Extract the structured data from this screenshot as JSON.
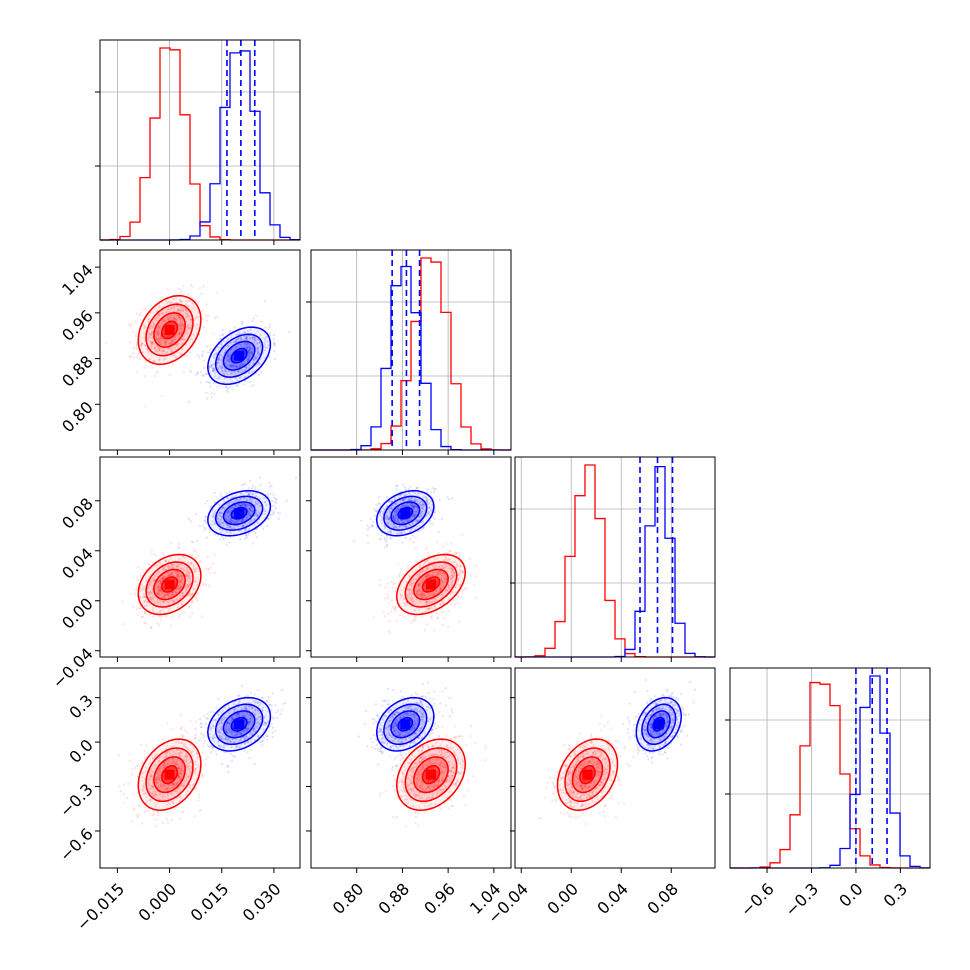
{
  "chart_data": {
    "type": "corner",
    "grid": true,
    "parameters": [
      {
        "id": "p0",
        "range": [
          -0.02,
          0.0375
        ],
        "ticks": [
          "−0.015",
          "0.000",
          "0.015",
          "0.030"
        ],
        "tick_values": [
          -0.015,
          0.0,
          0.015,
          0.03
        ]
      },
      {
        "id": "p1",
        "range": [
          0.72,
          1.07
        ],
        "ticks": [
          "0.80",
          "0.88",
          "0.96",
          "1.04"
        ],
        "tick_values": [
          0.8,
          0.88,
          0.96,
          1.04
        ]
      },
      {
        "id": "p2",
        "range": [
          -0.045,
          0.115
        ],
        "ticks": [
          "−0.04",
          "0.00",
          "0.04",
          "0.08"
        ],
        "tick_values": [
          -0.04,
          0.0,
          0.04,
          0.08
        ]
      },
      {
        "id": "p3",
        "range": [
          -0.85,
          0.5
        ],
        "ticks": [
          "−0.6",
          "−0.3",
          "0.0",
          "0.3"
        ],
        "tick_values": [
          -0.6,
          -0.3,
          0.0,
          0.3
        ]
      }
    ],
    "series": [
      {
        "color": "#ff0000",
        "mean": [
          0.0,
          0.93,
          0.013,
          -0.22
        ],
        "std": [
          0.0045,
          0.03,
          0.012,
          0.12
        ],
        "corr": {
          "1-0": 0.3,
          "2-0": 0.3,
          "2-1": 0.4,
          "3-0": 0.3,
          "3-1": 0.3,
          "3-2": 0.3
        },
        "quantiles": null
      },
      {
        "color": "#0000ff",
        "mean": [
          0.02,
          0.885,
          0.07,
          0.12
        ],
        "std": [
          0.0045,
          0.025,
          0.009,
          0.09
        ],
        "corr": {
          "1-0": 0.4,
          "2-0": 0.3,
          "2-1": 0.3,
          "3-0": 0.3,
          "3-1": 0.3,
          "3-2": 0.3
        },
        "quantiles": [
          [
            0.0165,
            0.0205,
            0.0245
          ],
          [
            0.862,
            0.887,
            0.91
          ],
          [
            0.055,
            0.069,
            0.081
          ],
          [
            0.0,
            0.11,
            0.21
          ]
        ]
      }
    ]
  }
}
